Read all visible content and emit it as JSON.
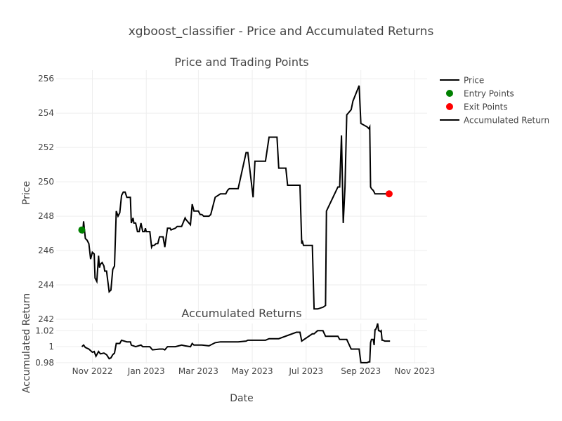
{
  "chart_data": {
    "type": "line",
    "title": "xgboost_classifier - Price and Accumulated Returns",
    "xlabel": "Date",
    "x_ticks": [
      "Nov 2022",
      "Jan 2023",
      "Mar 2023",
      "May 2023",
      "Jul 2023",
      "Sep 2023",
      "Nov 2023"
    ],
    "legend": [
      "Price",
      "Entry Points",
      "Exit Points",
      "Accumulated Return"
    ],
    "legend_position": "top-right",
    "colors": {
      "line": "#000000",
      "entry": "#008000",
      "exit": "#ff0000"
    },
    "subplots": [
      {
        "title": "Price and Trading Points",
        "ylabel": "Price",
        "ylim": [
          242,
          256.5
        ],
        "y_ticks": [
          242,
          244,
          246,
          248,
          250,
          252,
          254,
          256
        ],
        "series": [
          {
            "name": "Price",
            "x": [
              "2022-10-20",
              "2022-10-21",
              "2022-10-22",
              "2022-10-24",
              "2022-10-26",
              "2022-10-28",
              "2022-10-30",
              "2022-11-01",
              "2022-11-03",
              "2022-11-04",
              "2022-11-06",
              "2022-11-08",
              "2022-11-09",
              "2022-11-10",
              "2022-11-12",
              "2022-11-14",
              "2022-11-15",
              "2022-11-17",
              "2022-11-18",
              "2022-11-20",
              "2022-11-22",
              "2022-11-24",
              "2022-11-26",
              "2022-11-28",
              "2022-11-30",
              "2022-12-02",
              "2022-12-04",
              "2022-12-06",
              "2022-12-08",
              "2022-12-10",
              "2022-12-12",
              "2022-12-14",
              "2022-12-15",
              "2022-12-17",
              "2022-12-18",
              "2022-12-20",
              "2022-12-22",
              "2022-12-24",
              "2022-12-26",
              "2022-12-28",
              "2022-12-30",
              "2022-12-31",
              "2023-01-01",
              "2023-01-03",
              "2023-01-05",
              "2023-01-07",
              "2023-01-08",
              "2023-01-10",
              "2023-01-12",
              "2023-01-14",
              "2023-01-16",
              "2023-01-18",
              "2023-01-20",
              "2023-01-22",
              "2023-01-25",
              "2023-01-28",
              "2023-01-29",
              "2023-02-03",
              "2023-02-05",
              "2023-02-10",
              "2023-02-14",
              "2023-02-15",
              "2023-02-20",
              "2023-02-22",
              "2023-02-24",
              "2023-03-01",
              "2023-03-03",
              "2023-03-05",
              "2023-03-07",
              "2023-03-10",
              "2023-03-13",
              "2023-03-15",
              "2023-03-20",
              "2023-03-26",
              "2023-03-28",
              "2023-04-01",
              "2023-04-03",
              "2023-04-05",
              "2023-04-07",
              "2023-04-09",
              "2023-04-15",
              "2023-04-24",
              "2023-04-26",
              "2023-05-02",
              "2023-05-04",
              "2023-05-06",
              "2023-05-10",
              "2023-05-16",
              "2023-05-20",
              "2023-05-29",
              "2023-05-31",
              "2023-06-08",
              "2023-06-10",
              "2023-06-20",
              "2023-06-24",
              "2023-06-26",
              "2023-06-27",
              "2023-06-28",
              "2023-06-30",
              "2023-07-08",
              "2023-07-10",
              "2023-07-11",
              "2023-07-12",
              "2023-07-14",
              "2023-07-20",
              "2023-07-23",
              "2023-07-24",
              "2023-08-06",
              "2023-08-08",
              "2023-08-10",
              "2023-08-12",
              "2023-08-14",
              "2023-08-16",
              "2023-08-21",
              "2023-08-23",
              "2023-08-30",
              "2023-09-01",
              "2023-09-08",
              "2023-09-10",
              "2023-09-11",
              "2023-09-12",
              "2023-09-13",
              "2023-09-15",
              "2023-09-16",
              "2023-09-17",
              "2023-09-18",
              "2023-09-19",
              "2023-09-20",
              "2023-09-21",
              "2023-09-22",
              "2023-09-23",
              "2023-09-24",
              "2023-09-25",
              "2023-09-26",
              "2023-09-27",
              "2023-09-28",
              "2023-09-29",
              "2023-09-30",
              "2023-10-01",
              "2023-10-02",
              "2023-10-03",
              "2023-10-04"
            ],
            "y": [
              247.2,
              247.0,
              247.7,
              246.7,
              246.6,
              246.4,
              245.5,
              245.9,
              245.8,
              244.4,
              244.2,
              245.7,
              245.0,
              245.2,
              245.3,
              245.1,
              244.8,
              244.8,
              244.4,
              243.6,
              243.7,
              244.9,
              245.1,
              248.3,
              248.0,
              248.2,
              249.2,
              249.4,
              249.4,
              249.1,
              249.1,
              249.1,
              247.6,
              247.9,
              247.6,
              247.6,
              247.1,
              247.1,
              247.6,
              247.1,
              247.1,
              247.3,
              247.1,
              247.1,
              247.1,
              246.2,
              246.3,
              246.3,
              246.4,
              246.4,
              246.8,
              246.8,
              246.8,
              246.2,
              247.3,
              247.3,
              247.2,
              247.3,
              247.4,
              247.4,
              247.9,
              247.8,
              247.5,
              248.7,
              248.3,
              248.3,
              248.1,
              248.1,
              248.0,
              248.0,
              248.0,
              248.1,
              249.1,
              249.3,
              249.3,
              249.3,
              249.5,
              249.6,
              249.6,
              249.6,
              249.6,
              251.7,
              251.7,
              249.1,
              251.2,
              251.2,
              251.2,
              251.2,
              252.6,
              252.6,
              250.8,
              250.8,
              249.8,
              249.8,
              249.8,
              246.4,
              246.5,
              246.3,
              246.3,
              246.3,
              242.6,
              242.6,
              242.6,
              242.6,
              242.7,
              242.8,
              248.3,
              249.7,
              249.7,
              252.7,
              247.6,
              249.7,
              253.9,
              254.2,
              254.7,
              255.6,
              253.4,
              253.2,
              253.1,
              253.2,
              249.7,
              249.6,
              249.5,
              249.4,
              249.3,
              249.3,
              249.3,
              249.3,
              249.3,
              249.3,
              249.3,
              249.3,
              249.3,
              249.3,
              249.3,
              249.3,
              249.3,
              249.3,
              249.3,
              249.3,
              249.3,
              249.3
            ]
          },
          {
            "name": "Entry Points",
            "x": [
              "2022-10-20"
            ],
            "y": [
              247.2
            ]
          },
          {
            "name": "Exit Points",
            "x": [
              "2023-10-03"
            ],
            "y": [
              249.3
            ]
          }
        ]
      },
      {
        "title": "Accumulated Returns",
        "ylabel": "Accumulated Return",
        "ylim": [
          0.979,
          1.029
        ],
        "y_ticks": [
          0.98,
          1,
          1.02
        ],
        "y_tick_labels": [
          "0.98",
          "1",
          "1.02"
        ],
        "series": [
          {
            "name": "Accumulated Return",
            "x": [
              "2022-10-20",
              "2022-10-22",
              "2022-10-24",
              "2022-10-28",
              "2022-11-01",
              "2022-11-03",
              "2022-11-05",
              "2022-11-08",
              "2022-11-10",
              "2022-11-14",
              "2022-11-17",
              "2022-11-20",
              "2022-11-22",
              "2022-11-24",
              "2022-11-26",
              "2022-11-28",
              "2022-12-02",
              "2022-12-04",
              "2022-12-10",
              "2022-12-14",
              "2022-12-15",
              "2022-12-20",
              "2022-12-26",
              "2022-12-28",
              "2023-01-01",
              "2023-01-05",
              "2023-01-08",
              "2023-01-16",
              "2023-01-20",
              "2023-01-22",
              "2023-01-25",
              "2023-02-03",
              "2023-02-10",
              "2023-02-14",
              "2023-02-20",
              "2023-02-22",
              "2023-02-24",
              "2023-03-05",
              "2023-03-13",
              "2023-03-20",
              "2023-03-26",
              "2023-04-05",
              "2023-04-15",
              "2023-04-24",
              "2023-04-26",
              "2023-05-02",
              "2023-05-04",
              "2023-05-16",
              "2023-05-20",
              "2023-05-29",
              "2023-05-31",
              "2023-06-20",
              "2023-06-24",
              "2023-06-26",
              "2023-07-08",
              "2023-07-10",
              "2023-07-14",
              "2023-07-20",
              "2023-07-23",
              "2023-08-06",
              "2023-08-08",
              "2023-08-16",
              "2023-08-21",
              "2023-08-30",
              "2023-09-01",
              "2023-09-08",
              "2023-09-10",
              "2023-09-11",
              "2023-09-12",
              "2023-09-13",
              "2023-09-15",
              "2023-09-16",
              "2023-09-17",
              "2023-09-18",
              "2023-09-19",
              "2023-09-20",
              "2023-09-21",
              "2023-09-22",
              "2023-09-23",
              "2023-09-24",
              "2023-09-25",
              "2023-09-26",
              "2023-09-28",
              "2023-10-01",
              "2023-10-04"
            ],
            "y": [
              1.0,
              1.002,
              0.999,
              0.997,
              0.993,
              0.994,
              0.988,
              0.994,
              0.991,
              0.992,
              0.99,
              0.985,
              0.986,
              0.99,
              0.992,
              1.004,
              1.004,
              1.008,
              1.006,
              1.006,
              1.002,
              1.0,
              1.002,
              1.0,
              1.0,
              1.0,
              0.996,
              0.997,
              0.997,
              0.996,
              1.0,
              1.0,
              1.002,
              1.001,
              1.0,
              1.004,
              1.002,
              1.002,
              1.001,
              1.005,
              1.006,
              1.006,
              1.006,
              1.007,
              1.008,
              1.008,
              1.008,
              1.008,
              1.01,
              1.01,
              1.01,
              1.018,
              1.018,
              1.007,
              1.016,
              1.016,
              1.02,
              1.02,
              1.013,
              1.013,
              1.009,
              1.009,
              0.997,
              0.997,
              0.98,
              0.98,
              0.981,
              0.981,
              1.005,
              1.009,
              1.009,
              1.002,
              1.021,
              1.022,
              1.025,
              1.029,
              1.02,
              1.02,
              1.019,
              1.02,
              1.008,
              1.008,
              1.007,
              1.007,
              1.007
            ]
          }
        ]
      }
    ]
  }
}
